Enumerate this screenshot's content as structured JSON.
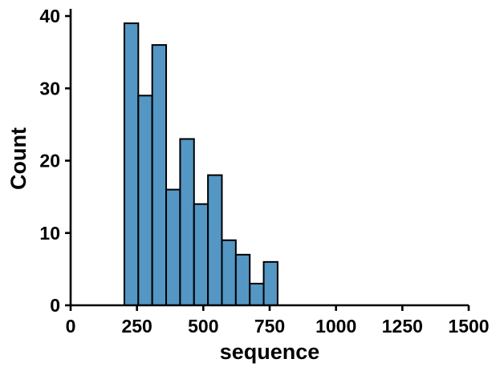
{
  "chart_data": {
    "type": "bar",
    "subtype": "histogram",
    "xlabel": "sequence",
    "ylabel": "Count",
    "xlim": [
      0,
      1500
    ],
    "ylim": [
      0,
      41
    ],
    "xticks": [
      0,
      250,
      500,
      750,
      1000,
      1250,
      1500
    ],
    "yticks": [
      0,
      10,
      20,
      30,
      40
    ],
    "bin_width": 52.5,
    "bins": [
      {
        "x0": 202.5,
        "x1": 255.0,
        "count": 39
      },
      {
        "x0": 255.0,
        "x1": 307.5,
        "count": 29
      },
      {
        "x0": 307.5,
        "x1": 360.0,
        "count": 36
      },
      {
        "x0": 360.0,
        "x1": 412.5,
        "count": 16
      },
      {
        "x0": 412.5,
        "x1": 465.0,
        "count": 23
      },
      {
        "x0": 465.0,
        "x1": 517.5,
        "count": 14
      },
      {
        "x0": 517.5,
        "x1": 570.0,
        "count": 18
      },
      {
        "x0": 570.0,
        "x1": 622.5,
        "count": 9
      },
      {
        "x0": 622.5,
        "x1": 675.0,
        "count": 7
      },
      {
        "x0": 675.0,
        "x1": 727.5,
        "count": 3
      },
      {
        "x0": 727.5,
        "x1": 780.0,
        "count": 6
      }
    ],
    "bar_color": "#5496c4",
    "edge_color": "#000000",
    "grid": false,
    "spines": [
      "left",
      "bottom"
    ]
  }
}
